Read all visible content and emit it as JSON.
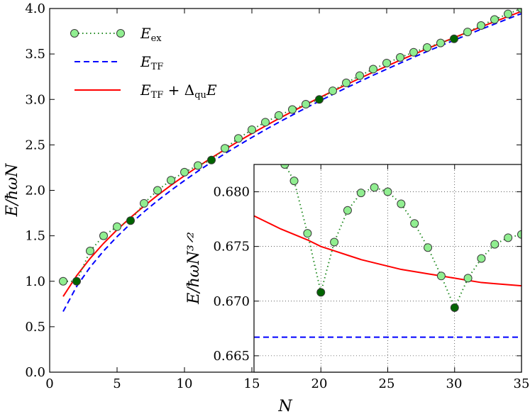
{
  "chart_data": [
    {
      "type": "line",
      "xlabel": "N",
      "ylabel": "E/ħωN",
      "xlim": [
        0,
        35
      ],
      "ylim": [
        0.0,
        4.0
      ],
      "xticks": [
        "0",
        "5",
        "10",
        "15",
        "20",
        "25",
        "30",
        "35"
      ],
      "yticks": [
        "0.0",
        "0.5",
        "1.0",
        "1.5",
        "2.0",
        "2.5",
        "3.0",
        "3.5",
        "4.0"
      ],
      "legend_position": "top-left",
      "series": [
        {
          "name": "E_ex",
          "legend_label": "E",
          "legend_sub": "ex",
          "style": "dotted-markers",
          "color": "#228B22",
          "marker_fill": "#90EE90",
          "highlight_fill": "#006400",
          "highlight_x": [
            2,
            6,
            12,
            20,
            30
          ],
          "x": [
            1,
            2,
            3,
            4,
            5,
            6,
            7,
            8,
            9,
            10,
            11,
            12,
            13,
            14,
            15,
            16,
            17,
            18,
            19,
            20,
            21,
            22,
            23,
            24,
            25,
            26,
            27,
            28,
            29,
            30,
            31,
            32,
            33,
            34,
            35
          ],
          "y": [
            1.0,
            1.0,
            1.333,
            1.5,
            1.6,
            1.667,
            1.857,
            2.0,
            2.111,
            2.2,
            2.273,
            2.333,
            2.462,
            2.571,
            2.667,
            2.75,
            2.824,
            2.889,
            2.947,
            3.0,
            3.095,
            3.182,
            3.261,
            3.333,
            3.4,
            3.462,
            3.519,
            3.571,
            3.621,
            3.667,
            3.742,
            3.813,
            3.879,
            3.941,
            4.0
          ]
        },
        {
          "name": "E_TF",
          "legend_label": "E",
          "legend_sub": "TF",
          "style": "dashed",
          "color": "#0000FF",
          "x": [
            1,
            2,
            3,
            4,
            5,
            6,
            7,
            8,
            9,
            10,
            11,
            12,
            13,
            14,
            15,
            16,
            17,
            18,
            19,
            20,
            21,
            22,
            23,
            24,
            25,
            26,
            27,
            28,
            29,
            30,
            31,
            32,
            33,
            34,
            35
          ],
          "y": [
            0.667,
            0.943,
            1.155,
            1.333,
            1.491,
            1.633,
            1.764,
            1.886,
            2.0,
            2.108,
            2.211,
            2.309,
            2.404,
            2.494,
            2.582,
            2.667,
            2.749,
            2.828,
            2.906,
            2.981,
            3.055,
            3.127,
            3.197,
            3.266,
            3.333,
            3.399,
            3.464,
            3.528,
            3.59,
            3.651,
            3.712,
            3.771,
            3.829,
            3.887,
            3.944
          ]
        },
        {
          "name": "E_TF + Δ_qu E",
          "legend_label": "E",
          "legend_sub": "TF",
          "legend_extra": " + Δ",
          "legend_sub2": "qu",
          "legend_tail": "E",
          "style": "solid",
          "color": "#FF0000",
          "x": [
            1,
            2,
            3,
            4,
            5,
            6,
            7,
            8,
            9,
            10,
            11,
            12,
            13,
            14,
            15,
            16,
            17,
            18,
            19,
            20,
            21,
            22,
            23,
            24,
            25,
            26,
            27,
            28,
            29,
            30,
            31,
            32,
            33,
            34,
            35
          ],
          "y": [
            0.833,
            1.061,
            1.251,
            1.417,
            1.566,
            1.701,
            1.827,
            1.945,
            2.056,
            2.161,
            2.261,
            2.357,
            2.449,
            2.539,
            2.625,
            2.708,
            2.789,
            2.867,
            2.944,
            3.018,
            3.091,
            3.162,
            3.232,
            3.3,
            3.366,
            3.431,
            3.495,
            3.558,
            3.619,
            3.68,
            3.739,
            3.798,
            3.855,
            3.912,
            3.968
          ]
        }
      ]
    },
    {
      "type": "line",
      "inset": true,
      "xlabel": "",
      "ylabel": "E/ħωN³ᐟ²",
      "xlim": [
        15,
        35
      ],
      "ylim": [
        0.6635,
        0.6825
      ],
      "grid": true,
      "xticks": [
        "15",
        "20",
        "25",
        "30",
        "35"
      ],
      "yticks": [
        "0.665",
        "0.670",
        "0.675",
        "0.680"
      ],
      "series": [
        {
          "name": "E_ex",
          "style": "dotted-markers",
          "color": "#228B22",
          "marker_fill": "#90EE90",
          "highlight_fill": "#006400",
          "highlight_x": [
            20,
            30
          ],
          "x": [
            17.3,
            18,
            19,
            20,
            21,
            22,
            23,
            24,
            25,
            26,
            27,
            28,
            29,
            30,
            31,
            32,
            33,
            34,
            35
          ],
          "y": [
            0.6825,
            0.681,
            0.6762,
            0.6708,
            0.6754,
            0.6783,
            0.6799,
            0.6804,
            0.68,
            0.6789,
            0.6771,
            0.6749,
            0.6723,
            0.6694,
            0.6721,
            0.6739,
            0.6752,
            0.6758,
            0.6761
          ]
        },
        {
          "name": "E_TF",
          "style": "dashed",
          "color": "#0000FF",
          "x": [
            15,
            35
          ],
          "y": [
            0.6667,
            0.6667
          ]
        },
        {
          "name": "E_TF + Δ_qu E",
          "style": "solid",
          "color": "#FF0000",
          "x": [
            15,
            16,
            17,
            18,
            19,
            20,
            21,
            22,
            23,
            24,
            25,
            26,
            27,
            28,
            29,
            30,
            31,
            32,
            33,
            34,
            35
          ],
          "y": [
            0.6778,
            0.6772,
            0.6766,
            0.6761,
            0.6756,
            0.675,
            0.6746,
            0.6742,
            0.6738,
            0.6735,
            0.6732,
            0.6729,
            0.6727,
            0.6725,
            0.6723,
            0.6721,
            0.6719,
            0.6717,
            0.6716,
            0.6715,
            0.6714
          ]
        }
      ]
    }
  ]
}
